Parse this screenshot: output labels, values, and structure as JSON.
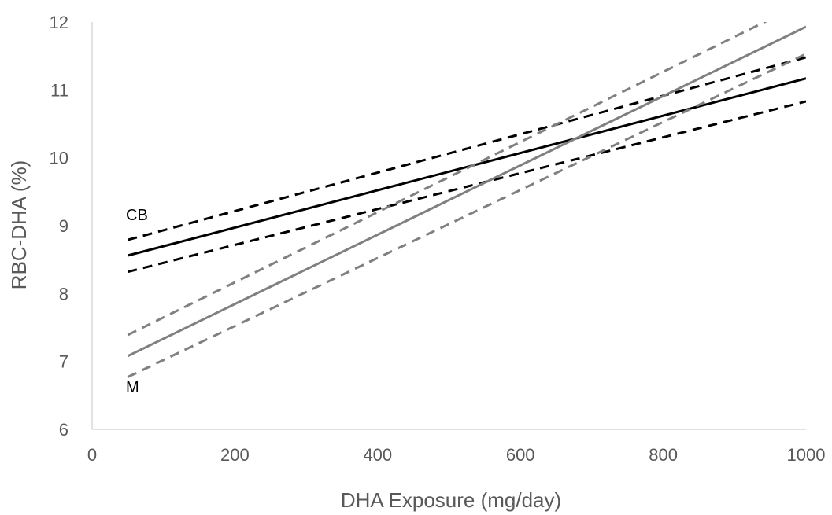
{
  "chart_data": {
    "type": "line",
    "title": "",
    "xlabel": "DHA Exposure (mg/day)",
    "ylabel": "RBC-DHA (%)",
    "xlim": [
      0,
      1000
    ],
    "ylim": [
      6,
      12
    ],
    "xticks": [
      0,
      200,
      400,
      600,
      800,
      1000
    ],
    "yticks": [
      6,
      7,
      8,
      9,
      10,
      11,
      12
    ],
    "xtick_labels": [
      "0",
      "200",
      "400",
      "600",
      "800",
      "1000"
    ],
    "ytick_labels": [
      "6",
      "7",
      "8",
      "9",
      "10",
      "11",
      "12"
    ],
    "grid": false,
    "legend": "none",
    "series": [
      {
        "label": "CB",
        "color": "#000000",
        "style": "solid",
        "x": [
          50,
          1000
        ],
        "y": [
          8.56,
          11.17
        ]
      },
      {
        "color": "#000000",
        "style": "dashed",
        "x": [
          50,
          1000
        ],
        "y": [
          8.79,
          11.48
        ]
      },
      {
        "color": "#000000",
        "style": "dashed",
        "x": [
          50,
          1000
        ],
        "y": [
          8.32,
          10.83
        ]
      },
      {
        "label": "M",
        "color": "#808080",
        "style": "solid",
        "x": [
          50,
          1000
        ],
        "y": [
          7.08,
          11.93
        ]
      },
      {
        "color": "#808080",
        "style": "dashed",
        "x": [
          50,
          1000
        ],
        "y": [
          7.39,
          12.3
        ]
      },
      {
        "color": "#808080",
        "style": "dashed",
        "x": [
          50,
          1000
        ],
        "y": [
          6.77,
          11.53
        ]
      }
    ]
  }
}
